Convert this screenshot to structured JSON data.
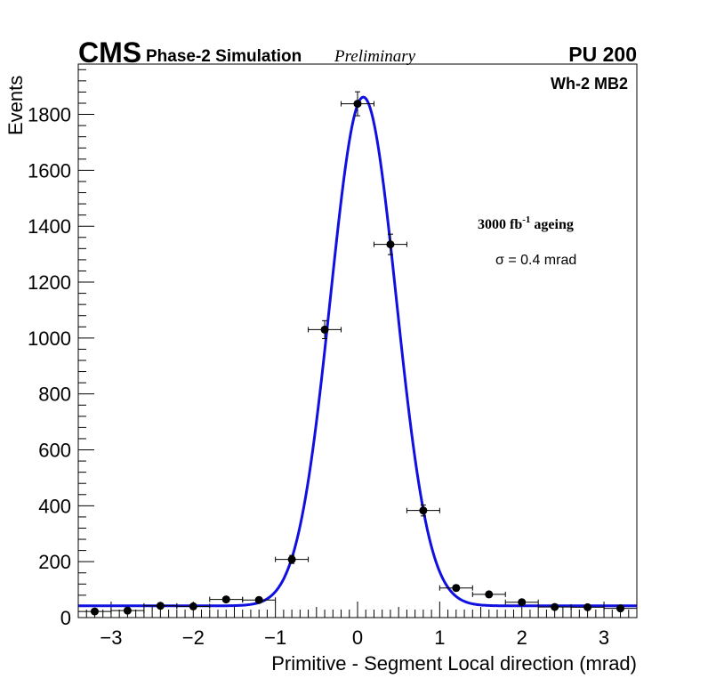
{
  "chart_data": {
    "type": "scatter",
    "title_cms": "CMS",
    "title_sim": "Phase-2 Simulation",
    "title_prelim": "Preliminary",
    "pileup": "PU 200",
    "station": "Wh-2 MB2",
    "ageing_base": "3000 fb",
    "ageing_sup": "-1",
    "ageing_tail": " ageing",
    "sigma_label": "σ = 0.4 mrad",
    "xlabel": "Primitive - Segment Local direction (mrad)",
    "ylabel": "Events",
    "xlim": [
      -3.4,
      3.4
    ],
    "ylim": [
      0,
      1980
    ],
    "xticks": [
      -3,
      -2,
      -1,
      0,
      1,
      2,
      3
    ],
    "xtick_labels": [
      "−3",
      "−2",
      "−1",
      "0",
      "1",
      "2",
      "3"
    ],
    "yticks": [
      0,
      200,
      400,
      600,
      800,
      1000,
      1200,
      1400,
      1600,
      1800
    ],
    "ytick_labels": [
      "0",
      "200",
      "400",
      "600",
      "800",
      "1000",
      "1200",
      "1400",
      "1600",
      "1800"
    ],
    "bin_half_width": 0.2,
    "points": [
      {
        "x": -3.2,
        "y": 22
      },
      {
        "x": -2.8,
        "y": 25
      },
      {
        "x": -2.4,
        "y": 42
      },
      {
        "x": -2.0,
        "y": 40
      },
      {
        "x": -1.6,
        "y": 65
      },
      {
        "x": -1.2,
        "y": 63
      },
      {
        "x": -0.8,
        "y": 208
      },
      {
        "x": -0.4,
        "y": 1030
      },
      {
        "x": 0.0,
        "y": 1838
      },
      {
        "x": 0.4,
        "y": 1335
      },
      {
        "x": 0.8,
        "y": 383
      },
      {
        "x": 1.2,
        "y": 106
      },
      {
        "x": 1.6,
        "y": 83
      },
      {
        "x": 2.0,
        "y": 55
      },
      {
        "x": 2.4,
        "y": 38
      },
      {
        "x": 2.8,
        "y": 37
      },
      {
        "x": 3.2,
        "y": 33
      }
    ],
    "fit": {
      "function": "gaus+const",
      "amplitude": 1820,
      "mean": 0.07,
      "sigma": 0.4,
      "constant": 42,
      "color": "#1010e0"
    },
    "marker_color": "#000000"
  }
}
